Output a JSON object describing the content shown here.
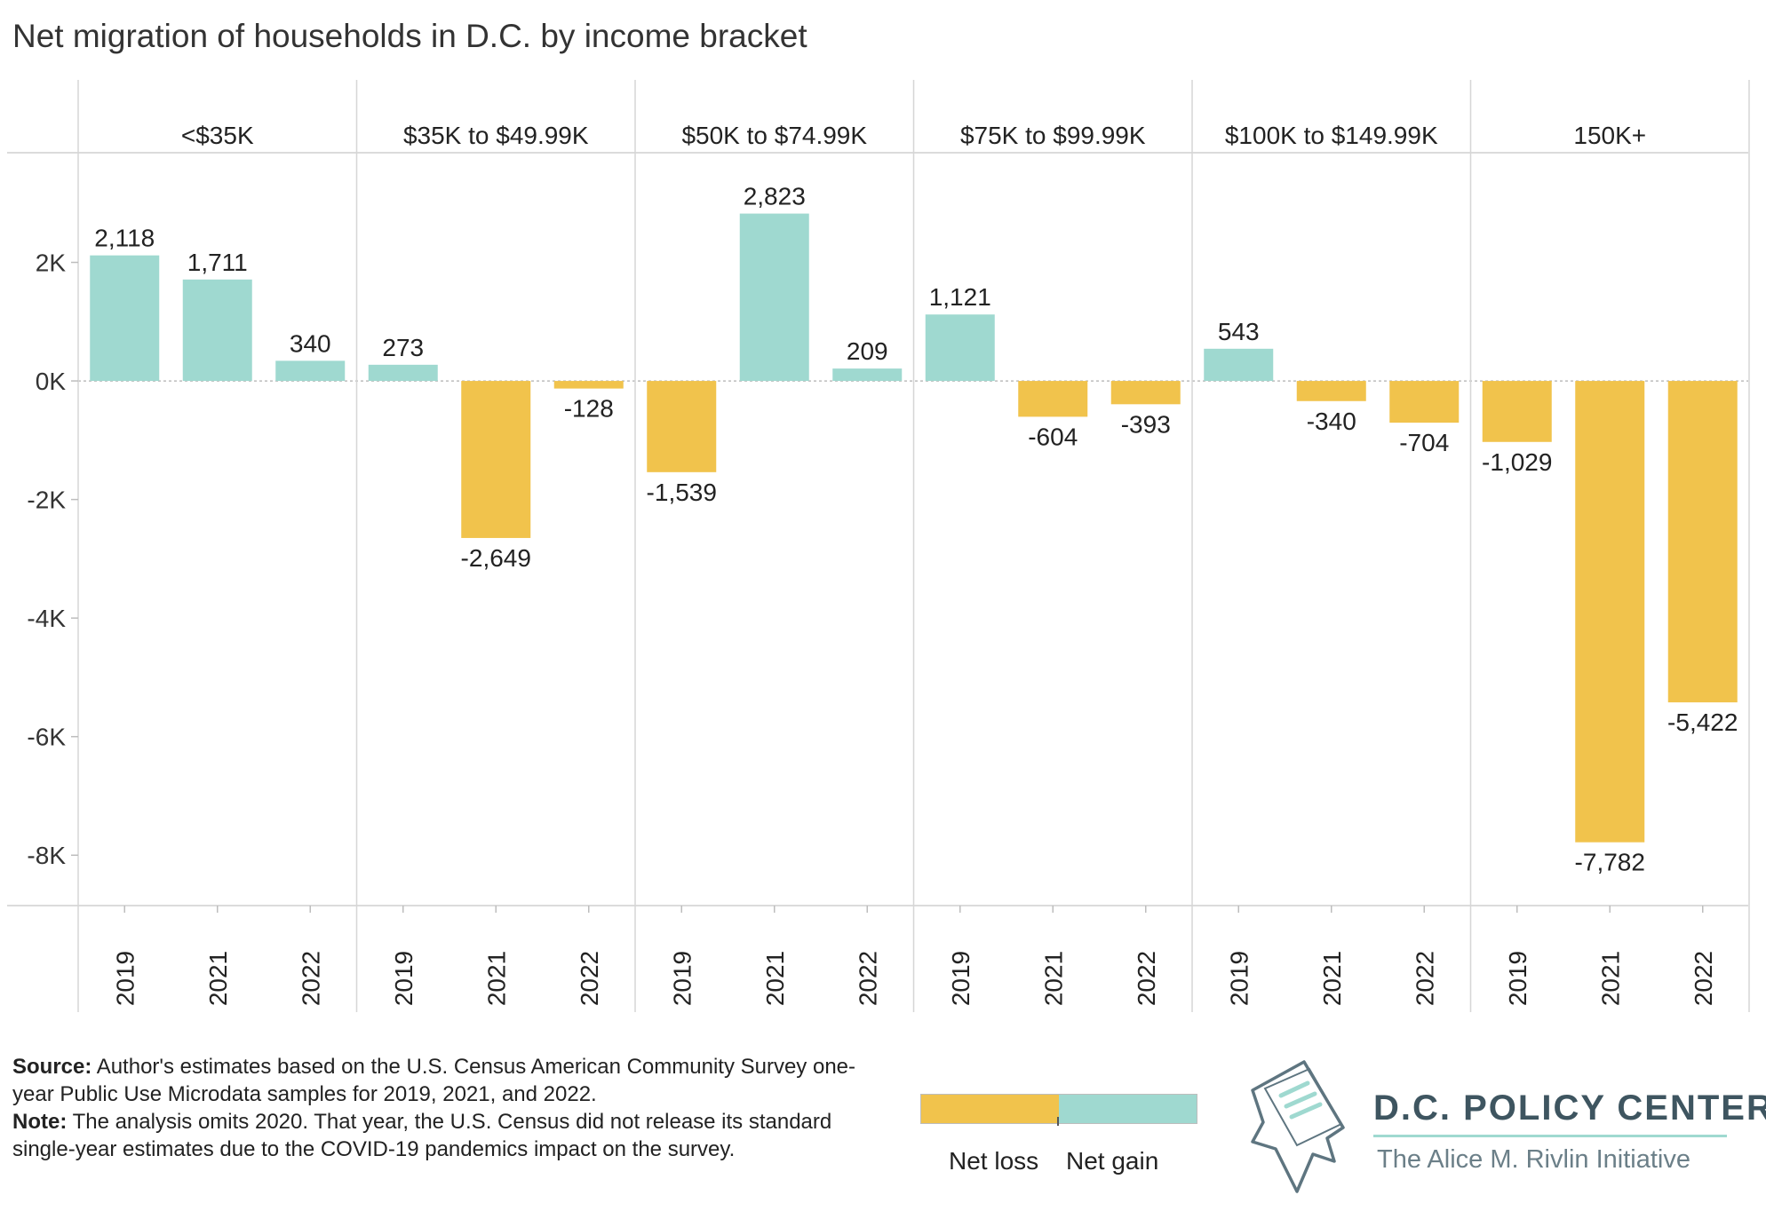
{
  "chart_data": {
    "type": "bar",
    "title": "Net migration of households in D.C. by income bracket",
    "panels": [
      {
        "name": "<$35K",
        "years": [
          "2019",
          "2021",
          "2022"
        ],
        "values": [
          2118,
          1711,
          340
        ],
        "labels": [
          "2,118",
          "1,711",
          "340"
        ]
      },
      {
        "name": "$35K to $49.99K",
        "years": [
          "2019",
          "2021",
          "2022"
        ],
        "values": [
          273,
          -2649,
          -128
        ],
        "labels": [
          "273",
          "-2,649",
          "-128"
        ]
      },
      {
        "name": "$50K to $74.99K",
        "years": [
          "2019",
          "2021",
          "2022"
        ],
        "values": [
          -1539,
          2823,
          209
        ],
        "labels": [
          "-1,539",
          "2,823",
          "209"
        ]
      },
      {
        "name": "$75K to $99.99K",
        "years": [
          "2019",
          "2021",
          "2022"
        ],
        "values": [
          1121,
          -604,
          -393
        ],
        "labels": [
          "1,121",
          "-604",
          "-393"
        ]
      },
      {
        "name": "$100K to $149.99K",
        "years": [
          "2019",
          "2021",
          "2022"
        ],
        "values": [
          543,
          -340,
          -704
        ],
        "labels": [
          "543",
          "-340",
          "-704"
        ]
      },
      {
        "name": "150K+",
        "years": [
          "2019",
          "2021",
          "2022"
        ],
        "values": [
          -1029,
          -7782,
          -5422
        ],
        "labels": [
          "-1,029",
          "-7,782",
          "-5,422"
        ]
      }
    ],
    "ylim": [
      -8850,
      3850
    ],
    "yticks": [
      2000,
      0,
      -2000,
      -4000,
      -6000,
      -8000
    ],
    "ytick_labels": [
      "2K",
      "0K",
      "-2K",
      "-4K",
      "-6K",
      "-8K"
    ],
    "colors": {
      "net_gain": "#9fd9d0",
      "net_loss": "#f1c34c"
    },
    "legend": {
      "loss_label": "Net loss",
      "gain_label": "Net gain",
      "placement": "bottom"
    },
    "grid": false
  },
  "footnote": {
    "source_label": "Source:",
    "source_text": " Author's estimates based on the U.S. Census American Community Survey one-year Public Use Microdata samples for 2019, 2021, and 2022.",
    "note_label": "Note:",
    "note_text": " The analysis omits 2020. That year, the U.S. Census did not release its standard single-year estimates due to the COVID-19 pandemics impact on the survey."
  },
  "logo": {
    "name": "D.C. POLICY CENTER",
    "tagline": "The Alice M. Rivlin Initiative"
  }
}
